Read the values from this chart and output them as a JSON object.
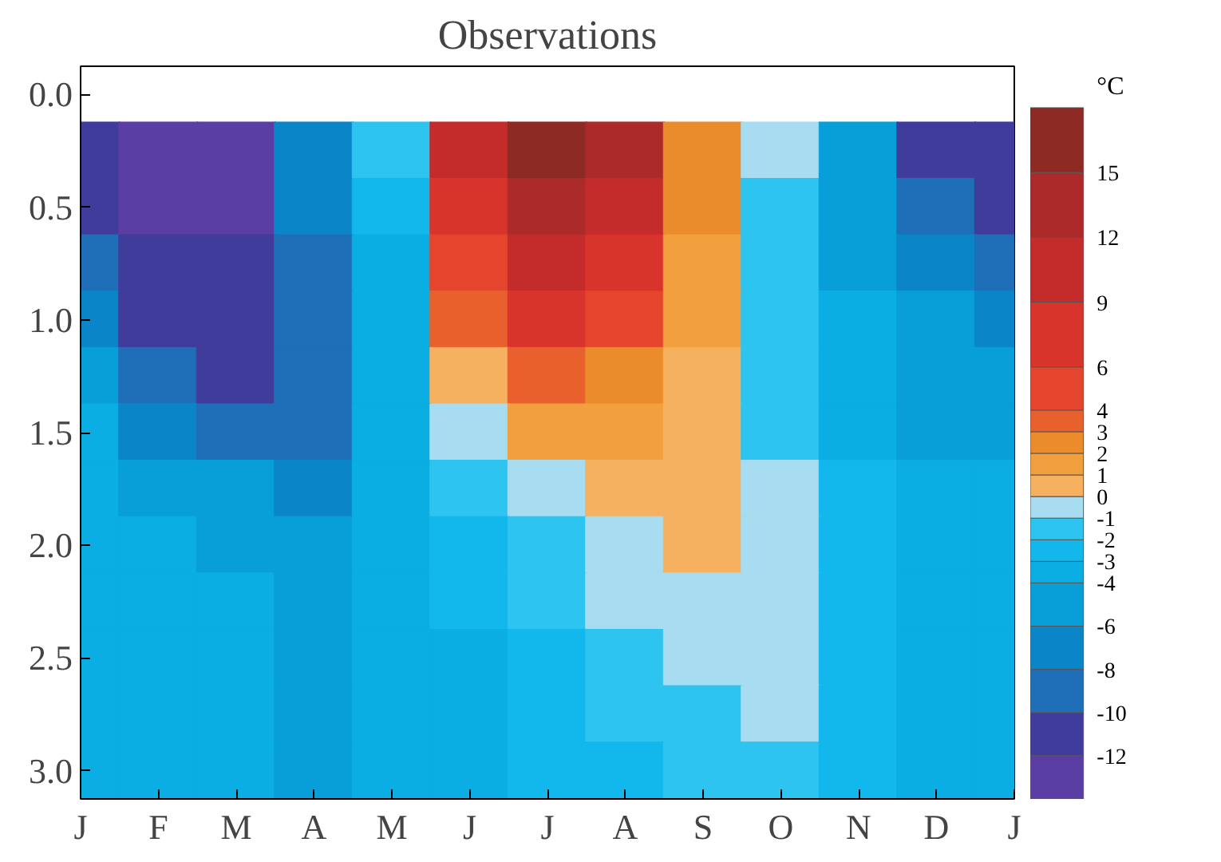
{
  "chart_data": {
    "type": "heatmap",
    "title": "Observations",
    "clabel": "°C",
    "categories": [
      "J",
      "F",
      "M",
      "A",
      "M",
      "J",
      "J",
      "A",
      "S",
      "O",
      "N",
      "D",
      "J"
    ],
    "y_categories": [
      "0.0",
      null,
      "0.5",
      null,
      "1.0",
      null,
      "1.5",
      null,
      "2.0",
      null,
      "2.5",
      null,
      "3.0"
    ],
    "cells": [
      [
        null,
        null,
        null,
        null,
        null,
        null,
        null,
        null,
        null,
        null,
        null,
        null,
        null
      ],
      [
        -11,
        -13,
        -13,
        -7,
        -1.5,
        10.5,
        16.5,
        13.5,
        2.5,
        -0.5,
        -5,
        -11,
        -11
      ],
      [
        -11,
        -13,
        -13,
        -7,
        -2.5,
        7.5,
        13.5,
        10.5,
        2.5,
        -1.5,
        -5,
        -9,
        -11
      ],
      [
        -9,
        -11,
        -11,
        -9,
        -3.5,
        5,
        10.5,
        7.5,
        1.5,
        -1.5,
        -5,
        -7,
        -9
      ],
      [
        -7,
        -11,
        -11,
        -9,
        -3.5,
        3.5,
        7.5,
        5,
        1.5,
        -1.5,
        -3.5,
        -5,
        -7
      ],
      [
        -5,
        -9,
        -11,
        -9,
        -3.5,
        0.5,
        3.5,
        2.5,
        0.5,
        -1.5,
        -3.5,
        -5,
        -5
      ],
      [
        -3.5,
        -7,
        -9,
        -9,
        -3.5,
        -0.5,
        1.5,
        1.5,
        0.5,
        -1.5,
        -3.5,
        -5,
        -5
      ],
      [
        -3.5,
        -5,
        -5,
        -7,
        -3.5,
        -1.5,
        -0.5,
        0.5,
        0.5,
        -0.5,
        -2.5,
        -3.5,
        -3.5
      ],
      [
        -3.5,
        -3.5,
        -5,
        -5,
        -3.5,
        -2.5,
        -1.5,
        -0.5,
        0.5,
        -0.5,
        -2.5,
        -3.5,
        -3.5
      ],
      [
        -3.5,
        -3.5,
        -3.5,
        -5,
        -3.5,
        -2.5,
        -1.5,
        -0.5,
        -0.5,
        -0.5,
        -2.5,
        -3.5,
        -3.5
      ],
      [
        -3.5,
        -3.5,
        -3.5,
        -5,
        -3.5,
        -3.5,
        -2.5,
        -1.5,
        -0.5,
        -0.5,
        -2.5,
        -3.5,
        -3.5
      ],
      [
        -3.5,
        -3.5,
        -3.5,
        -5,
        -3.5,
        -3.5,
        -2.5,
        -1.5,
        -1.5,
        -0.5,
        -2.5,
        -3.5,
        -3.5
      ],
      [
        -3.5,
        -3.5,
        -3.5,
        -5,
        -3.5,
        -3.5,
        -2.5,
        -2.5,
        -1.5,
        -1.5,
        -2.5,
        -3.5,
        -3.5
      ]
    ],
    "clim": [
      -14,
      18
    ],
    "cticks": [
      -12,
      -10,
      -8,
      -6,
      -4,
      -3,
      -2,
      -1,
      0,
      1,
      2,
      3,
      4,
      6,
      9,
      12,
      15
    ],
    "colors": [
      "#5b3ea3",
      "#3f3c9c",
      "#1f6fb8",
      "#0a86c8",
      "#089fd8",
      "#0aaee3",
      "#12b8ec",
      "#2ec4f0",
      "#a8dcf0",
      "#f5b060",
      "#f2a03e",
      "#ea8c2c",
      "#e8602c",
      "#e4452c",
      "#d8342c",
      "#c42c2c",
      "#ad2a2a",
      "#8e2a24"
    ]
  }
}
